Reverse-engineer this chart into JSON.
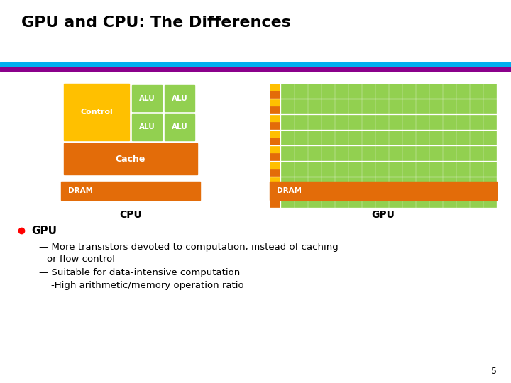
{
  "title": "GPU and CPU: The Differences",
  "title_fontsize": 16,
  "title_fontweight": "bold",
  "bg_color": "#ffffff",
  "header_bar_cyan": "#00b0f0",
  "header_bar_purple": "#8b008b",
  "color_orange": "#e36c09",
  "color_green": "#92d050",
  "color_gold": "#ffc000",
  "cpu_label": "CPU",
  "gpu_label": "GPU",
  "control_label": "Control",
  "alu_label": "ALU",
  "cache_label": "Cache",
  "dram_label": "DRAM",
  "bullet_color": "#ff0000",
  "text_color": "#000000",
  "white_text": "#ffffff",
  "slide_number": "5"
}
